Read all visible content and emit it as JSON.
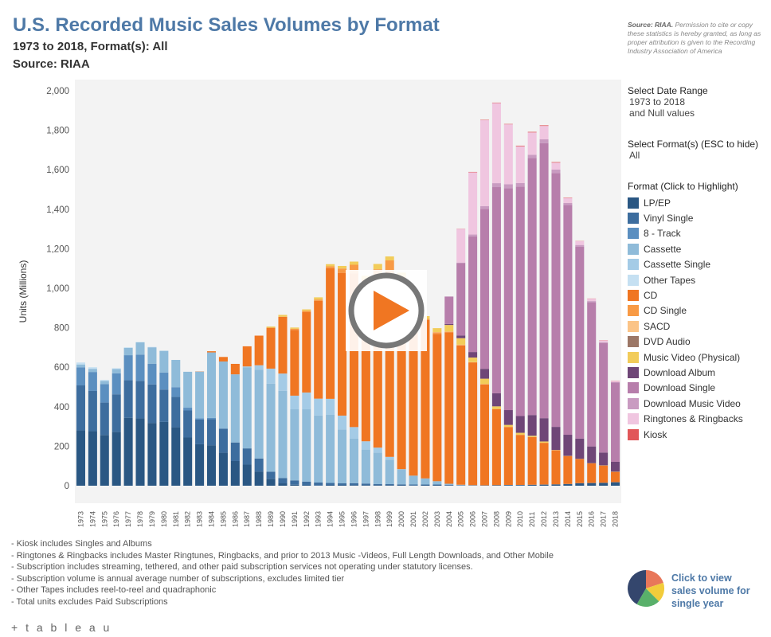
{
  "header": {
    "title": "U.S. Recorded Music Sales Volumes by Format",
    "subtitle1": "1973 to 2018, Format(s): All",
    "subtitle2": "Source: RIAA"
  },
  "source_note": {
    "bold": "Source: RIAA.",
    "text": " Permission to cite or copy these statistics is hereby granted, as long as proper attribution is given to the Recording Industry Association of America"
  },
  "filters": {
    "date_label": "Select Date Range",
    "date_value1": "1973 to 2018",
    "date_value2": "and Null values",
    "format_label": "Select Format(s) (ESC to hide)",
    "format_value": "All"
  },
  "legend": {
    "title": "Format (Click to Highlight)",
    "items": [
      {
        "name": "LP/EP",
        "color": "#2a5783"
      },
      {
        "name": "Vinyl Single",
        "color": "#3d6d9e"
      },
      {
        "name": "8 - Track",
        "color": "#5b8fc0"
      },
      {
        "name": "Cassette",
        "color": "#8fbbd9"
      },
      {
        "name": "Cassette Single",
        "color": "#a4cbe6"
      },
      {
        "name": "Other Tapes",
        "color": "#c5e0f2"
      },
      {
        "name": "CD",
        "color": "#f07622"
      },
      {
        "name": "CD Single",
        "color": "#f89a45"
      },
      {
        "name": "SACD",
        "color": "#fbc487"
      },
      {
        "name": "DVD Audio",
        "color": "#9c7766"
      },
      {
        "name": "Music Video (Physical)",
        "color": "#f2cc5a"
      },
      {
        "name": "Download Album",
        "color": "#6f4677"
      },
      {
        "name": "Download Single",
        "color": "#b77eab"
      },
      {
        "name": "Download Music Video",
        "color": "#c99bc1"
      },
      {
        "name": "Ringtones & Ringbacks",
        "color": "#f0c6e0"
      },
      {
        "name": "Kiosk",
        "color": "#e15759"
      }
    ]
  },
  "notes": [
    "- Kiosk includes Singles and Albums",
    "- Ringtones & Ringbacks includes Master Ringtunes, Ringbacks, and prior to 2013 Music -Videos, Full Length Downloads, and Other Mobile",
    "- Subscription includes streaming, tethered, and other paid subscription services not operating under statutory licenses.",
    "- Subscription volume is annual average number of subscriptions, excludes limited tier",
    "- Other Tapes includes reel-to-reel and quadraphonic",
    "- Total units excludes Paid Subscriptions"
  ],
  "pie_link": "Click to view sales volume for single year",
  "logo": "+ t a b l e a u",
  "icons": {
    "play": "play-icon",
    "pie": "pie-chart-icon"
  },
  "chart_data": {
    "type": "bar",
    "stacked": true,
    "title": "U.S. Recorded Music Sales Volumes by Format",
    "ylabel": "Units (Millions)",
    "xlabel": "",
    "ylim": [
      0,
      2000
    ],
    "yticks": [
      0,
      200,
      400,
      600,
      800,
      1000,
      1200,
      1400,
      1600,
      1800,
      2000
    ],
    "ytick_labels": [
      "0",
      "200",
      "400",
      "600",
      "800",
      "1,000",
      "1,200",
      "1,400",
      "1,600",
      "1,800",
      "2,000"
    ],
    "grid": false,
    "legend": "right",
    "categories": [
      "1973",
      "1974",
      "1975",
      "1976",
      "1977",
      "1978",
      "1979",
      "1980",
      "1981",
      "1982",
      "1983",
      "1984",
      "1985",
      "1986",
      "1987",
      "1988",
      "1989",
      "1990",
      "1991",
      "1992",
      "1993",
      "1994",
      "1995",
      "1996",
      "1997",
      "1998",
      "1999",
      "2000",
      "2001",
      "2002",
      "2003",
      "2004",
      "2005",
      "2006",
      "2007",
      "2008",
      "2009",
      "2010",
      "2011",
      "2012",
      "2013",
      "2014",
      "2015",
      "2016",
      "2017",
      "2018"
    ],
    "series": [
      {
        "name": "LP/EP",
        "values": [
          280,
          276,
          257,
          273,
          344,
          341,
          318,
          323,
          296,
          244,
          210,
          205,
          167,
          125,
          107,
          72,
          35,
          12,
          5,
          2,
          1,
          2,
          2,
          3,
          3,
          3,
          3,
          2,
          1,
          2,
          2,
          1,
          1,
          1,
          1,
          2,
          3,
          3,
          4,
          5,
          6,
          8,
          12,
          13,
          14,
          17
        ]
      },
      {
        "name": "Vinyl Single",
        "values": [
          228,
          204,
          164,
          190,
          190,
          190,
          195,
          164,
          154,
          137,
          125,
          132,
          121,
          94,
          82,
          66,
          36,
          27,
          22,
          19,
          15,
          12,
          10,
          10,
          8,
          5,
          5,
          5,
          5,
          4,
          4,
          4,
          2,
          1,
          1,
          1,
          1,
          1,
          1,
          1,
          1,
          1,
          1,
          1,
          1,
          1
        ]
      },
      {
        "name": "8 - Track",
        "values": [
          91,
          96,
          94,
          106,
          127,
          133,
          105,
          86,
          49,
          14,
          6,
          6,
          2,
          0,
          0,
          0,
          0,
          0,
          0,
          0,
          0,
          0,
          0,
          0,
          0,
          0,
          0,
          0,
          0,
          0,
          0,
          0,
          0,
          0,
          0,
          0,
          0,
          0,
          0,
          0,
          0,
          0,
          0,
          0,
          0,
          0
        ]
      },
      {
        "name": "Cassette",
        "values": [
          15,
          16,
          16,
          22,
          37,
          62,
          83,
          110,
          138,
          182,
          237,
          332,
          339,
          345,
          410,
          450,
          446,
          442,
          360,
          366,
          340,
          345,
          273,
          225,
          172,
          159,
          124,
          76,
          45,
          31,
          17,
          5,
          2,
          1,
          0,
          0,
          0,
          0,
          0,
          0,
          0,
          0,
          0,
          0,
          0,
          0
        ]
      },
      {
        "name": "Cassette Single",
        "values": [
          0,
          0,
          0,
          0,
          0,
          0,
          0,
          0,
          0,
          0,
          0,
          0,
          0,
          0,
          5,
          22,
          76,
          87,
          69,
          85,
          85,
          81,
          70,
          59,
          42,
          26,
          14,
          1,
          0,
          0,
          0,
          0,
          0,
          0,
          0,
          0,
          0,
          0,
          0,
          0,
          0,
          0,
          0,
          0,
          0,
          0
        ]
      },
      {
        "name": "Other Tapes",
        "values": [
          10,
          8,
          5,
          4,
          3,
          2,
          2,
          1,
          0,
          0,
          0,
          0,
          0,
          0,
          0,
          0,
          0,
          0,
          0,
          0,
          0,
          0,
          0,
          0,
          0,
          0,
          0,
          0,
          0,
          0,
          0,
          0,
          0,
          0,
          0,
          0,
          0,
          0,
          0,
          0,
          0,
          0,
          0,
          0,
          0,
          0
        ]
      },
      {
        "name": "CD",
        "values": [
          0,
          0,
          0,
          0,
          0,
          0,
          0,
          0,
          0,
          0,
          1,
          6,
          23,
          53,
          102,
          150,
          207,
          287,
          333,
          407,
          495,
          662,
          723,
          779,
          753,
          847,
          939,
          943,
          882,
          803,
          746,
          767,
          705,
          620,
          511,
          385,
          293,
          253,
          241,
          211,
          172,
          141,
          122,
          99,
          87,
          52
        ]
      },
      {
        "name": "CD Single",
        "values": [
          0,
          0,
          0,
          0,
          0,
          0,
          0,
          0,
          0,
          0,
          0,
          0,
          0,
          0,
          0,
          0,
          0,
          1,
          6,
          7,
          7,
          9,
          22,
          43,
          67,
          56,
          56,
          34,
          17,
          5,
          8,
          3,
          3,
          2,
          2,
          1,
          1,
          1,
          1,
          1,
          1,
          0,
          0,
          0,
          0,
          0
        ]
      },
      {
        "name": "SACD",
        "values": [
          0,
          0,
          0,
          0,
          0,
          0,
          0,
          0,
          0,
          0,
          0,
          0,
          0,
          0,
          0,
          0,
          0,
          0,
          0,
          0,
          0,
          0,
          0,
          0,
          0,
          0,
          0,
          0,
          0,
          0,
          1,
          1,
          1,
          1,
          0,
          0,
          0,
          0,
          0,
          0,
          0,
          0,
          0,
          0,
          0,
          0
        ]
      },
      {
        "name": "DVD Audio",
        "values": [
          0,
          0,
          0,
          0,
          0,
          0,
          0,
          0,
          0,
          0,
          0,
          0,
          0,
          0,
          0,
          0,
          0,
          0,
          0,
          0,
          0,
          0,
          0,
          0,
          0,
          0,
          0,
          0,
          0,
          0,
          0,
          0,
          0,
          0,
          0,
          0,
          0,
          0,
          0,
          0,
          0,
          0,
          0,
          0,
          0,
          0
        ]
      },
      {
        "name": "Music Video (Physical)",
        "values": [
          0,
          0,
          0,
          0,
          0,
          0,
          0,
          0,
          0,
          0,
          0,
          0,
          0,
          0,
          0,
          0,
          6,
          9,
          6,
          7,
          11,
          11,
          13,
          16,
          18,
          27,
          20,
          18,
          17,
          14,
          20,
          33,
          33,
          23,
          27,
          13,
          10,
          10,
          6,
          6,
          1,
          1,
          1,
          1,
          1,
          1
        ]
      },
      {
        "name": "Download Album",
        "values": [
          0,
          0,
          0,
          0,
          0,
          0,
          0,
          0,
          0,
          0,
          0,
          0,
          0,
          0,
          0,
          0,
          0,
          0,
          0,
          0,
          0,
          0,
          0,
          0,
          0,
          0,
          0,
          0,
          0,
          0,
          0,
          5,
          14,
          28,
          50,
          66,
          75,
          85,
          105,
          118,
          117,
          107,
          103,
          85,
          65,
          50
        ]
      },
      {
        "name": "Download Single",
        "values": [
          0,
          0,
          0,
          0,
          0,
          0,
          0,
          0,
          0,
          0,
          0,
          0,
          0,
          0,
          0,
          0,
          0,
          0,
          0,
          0,
          0,
          0,
          0,
          0,
          0,
          0,
          0,
          0,
          0,
          0,
          0,
          139,
          367,
          586,
          810,
          1044,
          1124,
          1162,
          1301,
          1393,
          1285,
          1164,
          972,
          730,
          555,
          401
        ]
      },
      {
        "name": "Download Music Video",
        "values": [
          0,
          0,
          0,
          0,
          0,
          0,
          0,
          0,
          0,
          0,
          0,
          0,
          0,
          0,
          0,
          0,
          0,
          0,
          0,
          0,
          0,
          0,
          0,
          0,
          0,
          0,
          0,
          0,
          0,
          0,
          0,
          0,
          2,
          9,
          14,
          20,
          20,
          18,
          17,
          19,
          18,
          10,
          8,
          6,
          4,
          3
        ]
      },
      {
        "name": "Ringtones & Ringbacks",
        "values": [
          0,
          0,
          0,
          0,
          0,
          0,
          0,
          0,
          0,
          0,
          0,
          0,
          0,
          0,
          0,
          0,
          0,
          0,
          0,
          0,
          0,
          0,
          0,
          0,
          0,
          0,
          0,
          0,
          0,
          0,
          0,
          0,
          170,
          315,
          435,
          406,
          303,
          186,
          113,
          68,
          35,
          25,
          19,
          12,
          9,
          6
        ]
      },
      {
        "name": "Kiosk",
        "values": [
          0,
          0,
          0,
          0,
          0,
          0,
          0,
          0,
          0,
          0,
          0,
          0,
          0,
          0,
          0,
          0,
          0,
          0,
          0,
          0,
          0,
          0,
          0,
          0,
          0,
          0,
          0,
          0,
          0,
          0,
          0,
          0,
          1,
          2,
          2,
          2,
          2,
          3,
          3,
          3,
          3,
          2,
          1,
          1,
          1,
          1
        ]
      }
    ]
  }
}
